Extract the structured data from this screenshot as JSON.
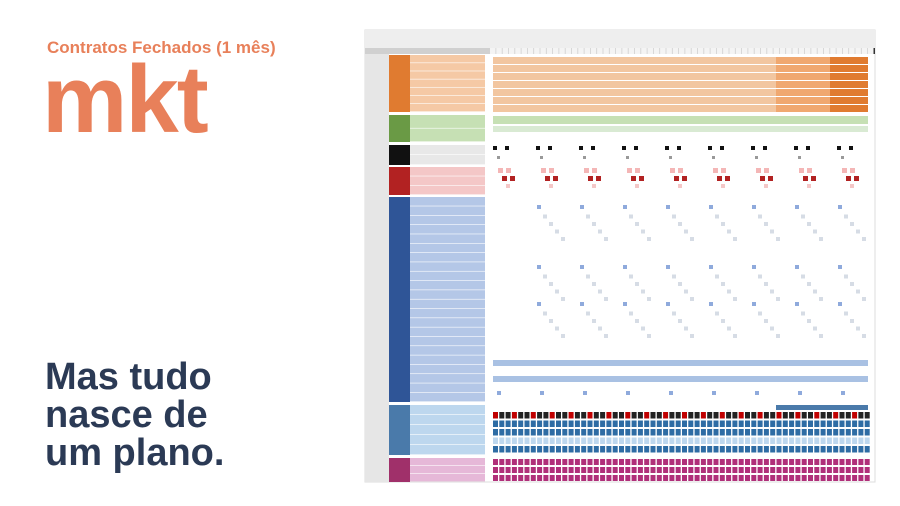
{
  "header": {
    "subtitle": "Contratos Fechados (1 mês)",
    "title": "mkt"
  },
  "tagline": [
    "Mas tudo",
    "nasce de",
    "um plano."
  ]
}
